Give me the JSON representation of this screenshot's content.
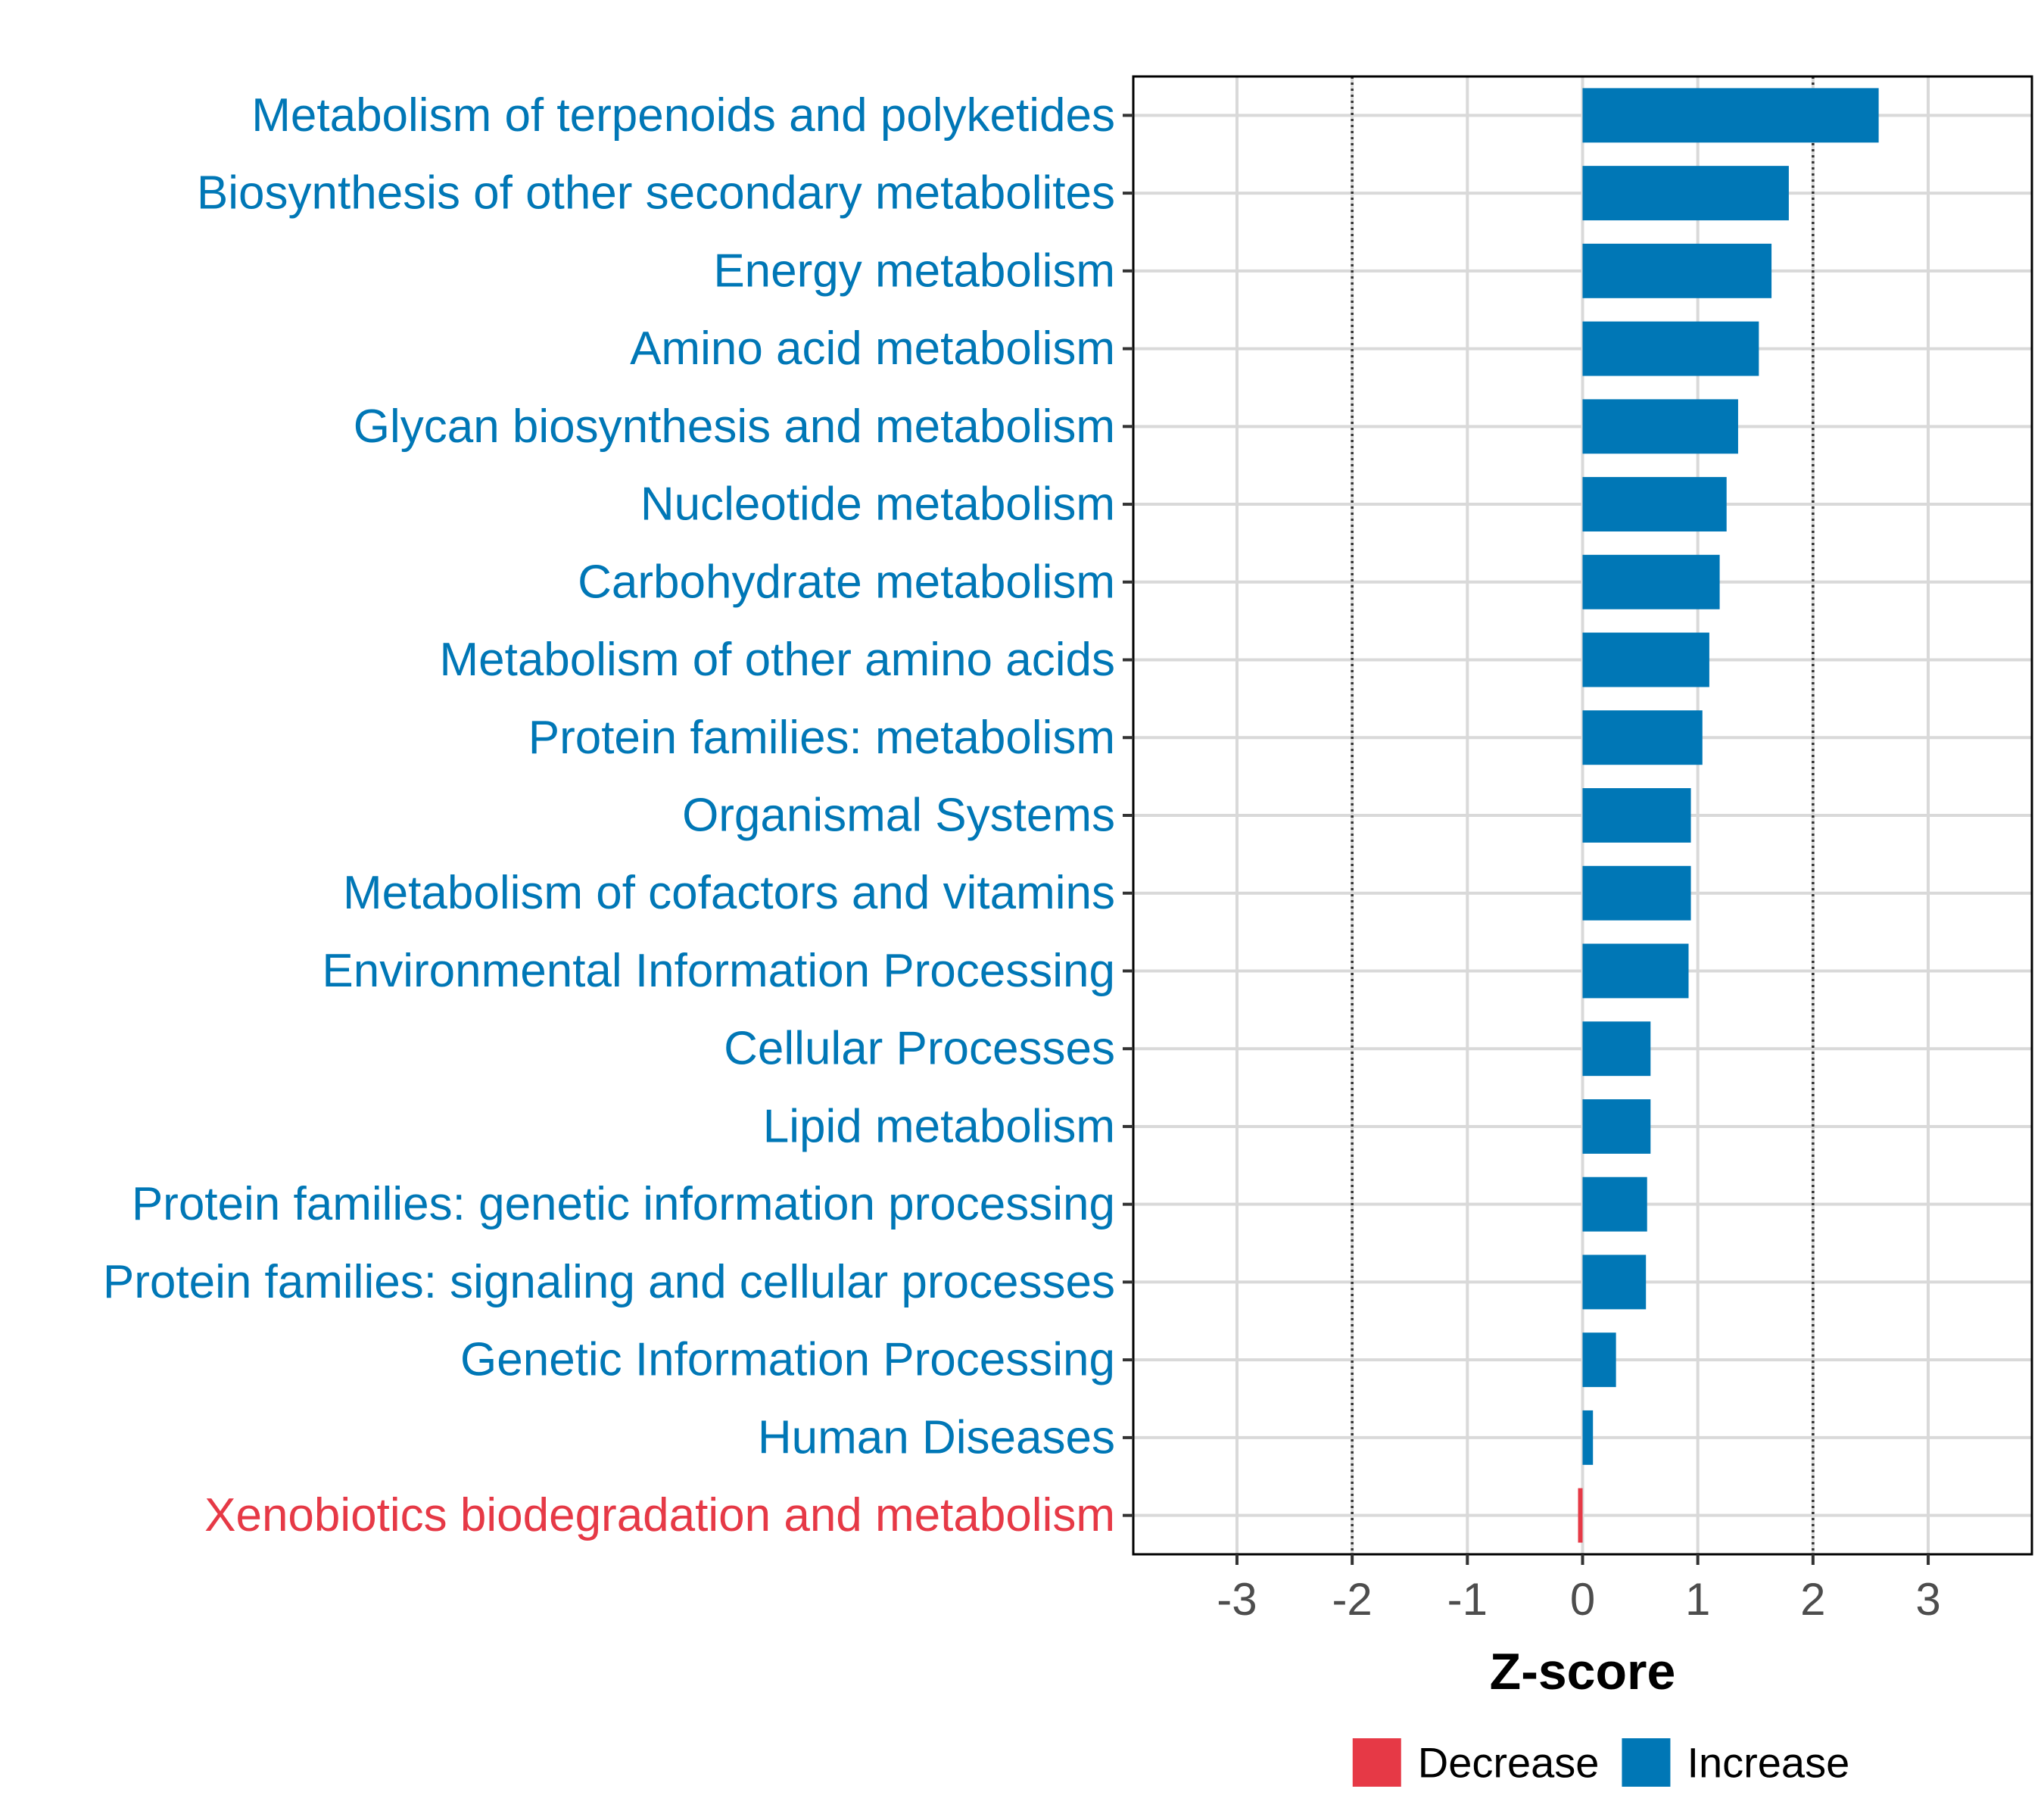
{
  "chart_data": {
    "type": "bar",
    "orientation": "horizontal",
    "categories": [
      "Metabolism of terpenoids and polyketides",
      "Biosynthesis of other secondary metabolites",
      "Energy metabolism",
      "Amino acid metabolism",
      "Glycan biosynthesis and metabolism",
      "Nucleotide metabolism",
      "Carbohydrate metabolism",
      "Metabolism of other amino acids",
      "Protein families: metabolism",
      "Organismal Systems",
      "Metabolism of cofactors and vitamins",
      "Environmental Information Processing",
      "Cellular Processes",
      "Lipid metabolism",
      "Protein families: genetic information processing",
      "Protein families: signaling and cellular processes",
      "Genetic Information Processing",
      "Human Diseases",
      "Xenobiotics biodegradation and metabolism"
    ],
    "values": [
      2.57,
      1.79,
      1.64,
      1.53,
      1.35,
      1.25,
      1.19,
      1.1,
      1.04,
      0.94,
      0.94,
      0.92,
      0.59,
      0.59,
      0.56,
      0.55,
      0.29,
      0.09,
      -0.03
    ],
    "direction": [
      "Increase",
      "Increase",
      "Increase",
      "Increase",
      "Increase",
      "Increase",
      "Increase",
      "Increase",
      "Increase",
      "Increase",
      "Increase",
      "Increase",
      "Increase",
      "Increase",
      "Increase",
      "Increase",
      "Increase",
      "Increase",
      "Decrease"
    ],
    "xlabel": "Z-score",
    "ylabel": "",
    "xlim": [
      -3.9,
      3.9
    ],
    "xticks": [
      -3,
      -2,
      -1,
      0,
      1,
      2,
      3
    ],
    "xtick_labels": [
      "-3",
      "-2",
      "-1",
      "0",
      "1",
      "2",
      "3"
    ],
    "reference_lines": [
      -2,
      2
    ],
    "grid": true,
    "legend": {
      "placement": "bottom",
      "entries": [
        {
          "label": "Decrease",
          "color": "#e63946"
        },
        {
          "label": "Increase",
          "color": "#0077b6"
        }
      ]
    },
    "colors": {
      "Increase": "#0077b6",
      "Decrease": "#e63946"
    }
  }
}
